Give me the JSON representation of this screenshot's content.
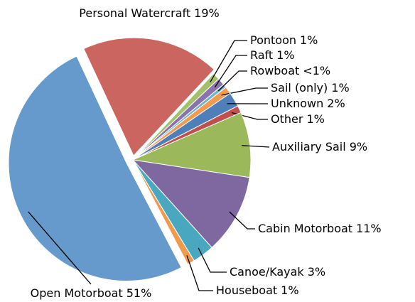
{
  "chart_data": {
    "type": "pie",
    "categories": [
      "Personal Watercraft",
      "Pontoon",
      "Raft",
      "Rowboat",
      "Sail (only)",
      "Unknown",
      "Other",
      "Auxiliary Sail",
      "Cabin Motorboat",
      "Canoe/Kayak",
      "Houseboat",
      "Open Motorboat"
    ],
    "values": [
      19,
      1,
      1,
      0.5,
      1,
      2,
      1,
      9,
      11,
      3,
      1,
      51
    ],
    "value_labels": [
      "19%",
      "1%",
      "1%",
      "<1%",
      "1%",
      "2%",
      "1%",
      "9%",
      "11%",
      "3%",
      "1%",
      "51%"
    ],
    "colors": [
      "#cb6560",
      "#a3c06a",
      "#8a72ac",
      "#6fb5cc",
      "#f39a4f",
      "#4f7fb9",
      "#c0504d",
      "#9bb85a",
      "#7f67a0",
      "#4aa7c0",
      "#ef9a4c",
      "#6699cc"
    ]
  }
}
